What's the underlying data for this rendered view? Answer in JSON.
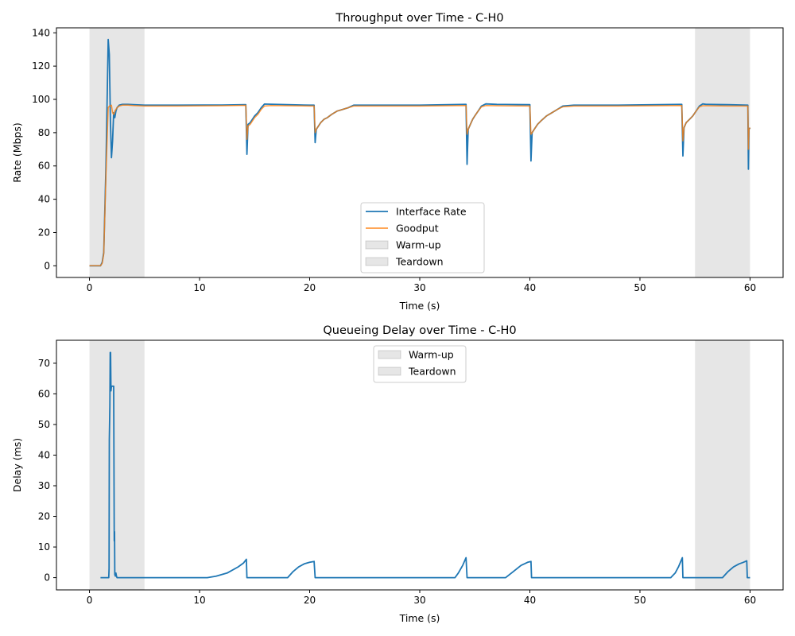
{
  "colors": {
    "interface_rate": "#1f77b4",
    "goodput": "#ff7f0e",
    "shade": "#808080"
  },
  "chart_data": [
    {
      "type": "line",
      "title": "Throughput over Time - C-H0",
      "xlabel": "Time (s)",
      "ylabel": "Rate (Mbps)",
      "xlim": [
        -3,
        63
      ],
      "ylim": [
        -7,
        143
      ],
      "xticks": [
        0,
        10,
        20,
        30,
        40,
        50,
        60
      ],
      "yticks": [
        0,
        20,
        40,
        60,
        80,
        100,
        120,
        140
      ],
      "legend_location": "lower center",
      "shaded_regions": [
        {
          "name": "Warm-up",
          "x0": 0,
          "x1": 5
        },
        {
          "name": "Teardown",
          "x0": 55,
          "x1": 60
        }
      ],
      "series": [
        {
          "name": "Interface Rate",
          "x": [
            0,
            1.0,
            1.15,
            1.3,
            1.5,
            1.7,
            1.8,
            1.9,
            2.0,
            2.1,
            2.2,
            2.3,
            2.4,
            2.5,
            2.7,
            3.0,
            3.5,
            4,
            5,
            8,
            12,
            14.2,
            14.3,
            14.4,
            14.6,
            14.8,
            15.0,
            15.3,
            15.6,
            15.9,
            16.5,
            18,
            20,
            20.4,
            20.5,
            20.6,
            20.8,
            21,
            21.3,
            21.6,
            22,
            22.5,
            23,
            23.5,
            24,
            26,
            30,
            34.2,
            34.3,
            34.4,
            34.6,
            34.8,
            35.0,
            35.3,
            35.6,
            36,
            37,
            40,
            40.1,
            40.2,
            40.4,
            40.7,
            41,
            41.5,
            42,
            42.5,
            43,
            44,
            48,
            53.8,
            53.9,
            54.0,
            54.2,
            54.5,
            54.8,
            55.1,
            55.4,
            55.7,
            56,
            58,
            59.8,
            59.85,
            59.9,
            60.0
          ],
          "values": [
            0,
            0,
            2,
            8,
            60,
            136,
            127,
            87,
            65,
            75,
            92,
            89,
            93,
            95,
            96.5,
            97,
            97,
            96.8,
            96.5,
            96.5,
            96.6,
            96.8,
            67,
            85,
            86,
            88,
            90,
            92,
            95,
            97.2,
            97.1,
            96.8,
            96.5,
            96.5,
            74,
            82,
            84,
            86,
            88,
            89,
            91,
            93,
            94,
            95,
            96.5,
            96.5,
            96.5,
            97,
            61,
            82,
            85,
            88,
            90,
            93,
            96,
            97.3,
            97,
            96.8,
            63,
            80,
            82,
            85,
            87,
            90,
            92,
            94,
            96,
            96.5,
            96.5,
            97,
            66,
            83,
            86,
            88,
            90,
            93,
            96,
            97.3,
            97,
            96.8,
            96.5,
            58,
            82,
            83
          ]
        },
        {
          "name": "Goodput",
          "x": [
            0,
            1.0,
            1.15,
            1.3,
            1.5,
            1.7,
            1.8,
            1.9,
            2.0,
            2.1,
            2.2,
            2.3,
            2.4,
            2.5,
            2.7,
            3.0,
            3.5,
            4,
            5,
            8,
            12,
            14.2,
            14.3,
            14.4,
            14.6,
            14.8,
            15.0,
            15.3,
            15.6,
            15.9,
            16.5,
            18,
            20,
            20.4,
            20.5,
            20.6,
            20.8,
            21,
            21.3,
            21.6,
            22,
            22.5,
            23,
            23.5,
            24,
            26,
            30,
            34.2,
            34.3,
            34.4,
            34.6,
            34.8,
            35.0,
            35.3,
            35.6,
            36,
            37,
            40,
            40.1,
            40.2,
            40.4,
            40.7,
            41,
            41.5,
            42,
            42.5,
            43,
            44,
            48,
            53.8,
            53.9,
            54.0,
            54.2,
            54.5,
            54.8,
            55.1,
            55.4,
            55.7,
            56,
            58,
            59.8,
            59.85,
            59.9,
            60.0
          ],
          "values": [
            0,
            0,
            1.5,
            7,
            55,
            95,
            96,
            96,
            96.5,
            92,
            91,
            93,
            94,
            95,
            96,
            96.5,
            96.5,
            96.3,
            96,
            96,
            96.2,
            96.4,
            76,
            84,
            85,
            87,
            89,
            91,
            94,
            96,
            96.3,
            96.2,
            96,
            96,
            80,
            82,
            84,
            86,
            88,
            89,
            91,
            93,
            94,
            95,
            96,
            96,
            96,
            96.3,
            79,
            82,
            85,
            88,
            90,
            93,
            95.5,
            96.3,
            96.2,
            96,
            79,
            80,
            82,
            85,
            87,
            90,
            92,
            94,
            95.5,
            96,
            96,
            96.3,
            75,
            83,
            86,
            88,
            90,
            93,
            95.5,
            96.2,
            96.2,
            96,
            96,
            70,
            82,
            83
          ]
        }
      ]
    },
    {
      "type": "line",
      "title": "Queueing Delay over Time - C-H0",
      "xlabel": "Time (s)",
      "ylabel": "Delay (ms)",
      "xlim": [
        -3,
        63
      ],
      "ylim": [
        -4,
        77.5
      ],
      "xticks": [
        0,
        10,
        20,
        30,
        40,
        50,
        60
      ],
      "yticks": [
        0,
        10,
        20,
        30,
        40,
        50,
        60,
        70
      ],
      "legend_location": "upper center",
      "shaded_regions": [
        {
          "name": "Warm-up",
          "x0": 0,
          "x1": 5
        },
        {
          "name": "Teardown",
          "x0": 55,
          "x1": 60
        }
      ],
      "series": [
        {
          "name": "",
          "x": [
            1.0,
            1.75,
            1.78,
            1.8,
            1.85,
            1.88,
            1.92,
            1.95,
            2.0,
            2.05,
            2.1,
            2.15,
            2.2,
            2.25,
            2.28,
            2.3,
            2.35,
            2.4,
            2.45,
            2.5,
            10.7,
            11.5,
            12.5,
            13.5,
            14.0,
            14.25,
            14.3,
            18.0,
            18.5,
            19.0,
            19.5,
            20.0,
            20.4,
            20.5,
            33.2,
            33.5,
            33.9,
            34.2,
            34.3,
            34.35,
            37.8,
            38.5,
            39.2,
            39.8,
            40.1,
            40.15,
            52.8,
            53.2,
            53.5,
            53.85,
            53.9,
            57.5,
            58.0,
            58.5,
            59.0,
            59.4,
            59.7,
            59.75,
            60.0
          ],
          "values": [
            0,
            0,
            3,
            45,
            56,
            73.5,
            73.5,
            61,
            62.5,
            62.5,
            62.5,
            62.5,
            62.5,
            12,
            15,
            1,
            0.5,
            1.5,
            0.5,
            0,
            0,
            0.5,
            1.5,
            3.5,
            4.8,
            6,
            0,
            0,
            2,
            3.5,
            4.5,
            5,
            5.3,
            0,
            0,
            1.5,
            4,
            6.5,
            0,
            0,
            0,
            2,
            4,
            5,
            5.3,
            0,
            0,
            1.5,
            3.5,
            6.5,
            0,
            0,
            2,
            3.5,
            4.5,
            5,
            5.5,
            0,
            0
          ]
        }
      ]
    }
  ]
}
